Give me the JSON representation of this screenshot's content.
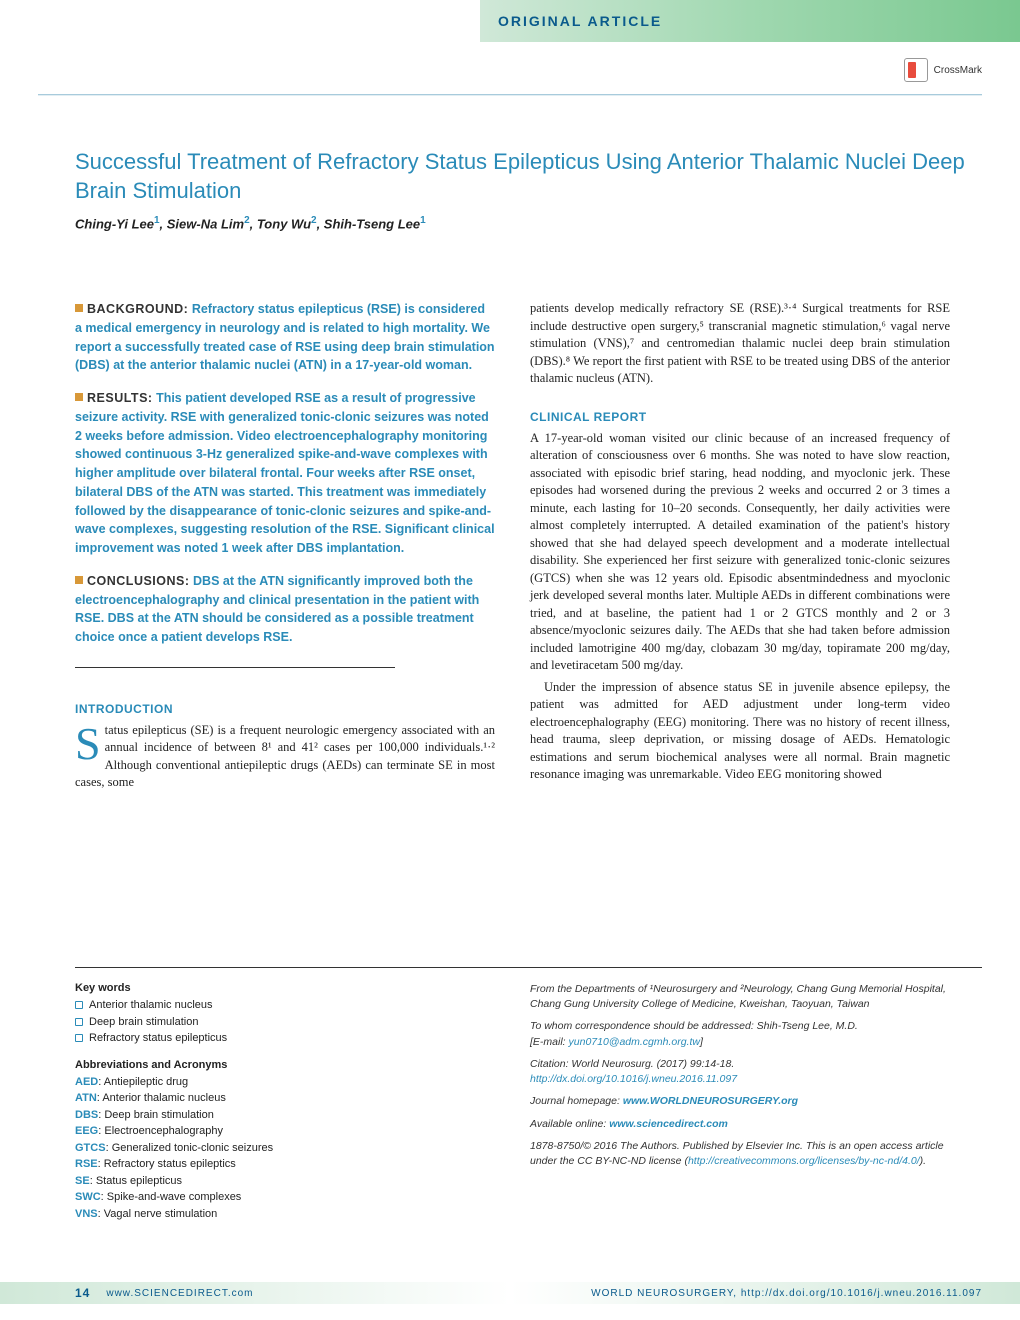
{
  "header": {
    "section_label": "Original Article",
    "crossmark": "CrossMark"
  },
  "title": "Successful Treatment of Refractory Status Epilepticus Using Anterior Thalamic Nuclei Deep Brain Stimulation",
  "authors_html": "Ching-Yi Lee<sup>1</sup>, Siew-Na Lim<sup>2</sup>, Tony Wu<sup>2</sup>, Shih-Tseng Lee<sup>1</sup>",
  "abstract": {
    "background": {
      "label": "BACKGROUND:",
      "text": "Refractory status epilepticus (RSE) is considered a medical emergency in neurology and is related to high mortality. We report a successfully treated case of RSE using deep brain stimulation (DBS) at the anterior thalamic nuclei (ATN) in a 17-year-old woman."
    },
    "results": {
      "label": "RESULTS:",
      "text": "This patient developed RSE as a result of progressive seizure activity. RSE with generalized tonic-clonic seizures was noted 2 weeks before admission. Video electroencephalography monitoring showed continuous 3-Hz generalized spike-and-wave complexes with higher amplitude over bilateral frontal. Four weeks after RSE onset, bilateral DBS of the ATN was started. This treatment was immediately followed by the disappearance of tonic-clonic seizures and spike-and-wave complexes, suggesting resolution of the RSE. Significant clinical improvement was noted 1 week after DBS implantation."
    },
    "conclusions": {
      "label": "CONCLUSIONS:",
      "text": "DBS at the ATN significantly improved both the electroencephalography and clinical presentation in the patient with RSE. DBS at the ATN should be considered as a possible treatment choice once a patient develops RSE."
    }
  },
  "introduction": {
    "heading": "INTRODUCTION",
    "dropcap": "S",
    "text": "tatus epilepticus (SE) is a frequent neurologic emergency associated with an annual incidence of between 8¹ and 41² cases per 100,000 individuals.¹·² Although conventional antiepileptic drugs (AEDs) can terminate SE in most cases, some"
  },
  "right_column": {
    "cont_text": "patients develop medically refractory SE (RSE).³·⁴ Surgical treatments for RSE include destructive open surgery,⁵ transcranial magnetic stimulation,⁶ vagal nerve stimulation (VNS),⁷ and centromedian thalamic nuclei deep brain stimulation (DBS).⁸ We report the first patient with RSE to be treated using DBS of the anterior thalamic nucleus (ATN).",
    "clinical_heading": "CLINICAL REPORT",
    "clinical_p1": "A 17-year-old woman visited our clinic because of an increased frequency of alteration of consciousness over 6 months. She was noted to have slow reaction, associated with episodic brief staring, head nodding, and myoclonic jerk. These episodes had worsened during the previous 2 weeks and occurred 2 or 3 times a minute, each lasting for 10–20 seconds. Consequently, her daily activities were almost completely interrupted. A detailed examination of the patient's history showed that she had delayed speech development and a moderate intellectual disability. She experienced her first seizure with generalized tonic-clonic seizures (GTCS) when she was 12 years old. Episodic absentmindedness and myoclonic jerk developed several months later. Multiple AEDs in different combinations were tried, and at baseline, the patient had 1 or 2 GTCS monthly and 2 or 3 absence/myoclonic seizures daily. The AEDs that she had taken before admission included lamotrigine 400 mg/day, clobazam 30 mg/day, topiramate 200 mg/day, and levetiracetam 500 mg/day.",
    "clinical_p2": "Under the impression of absence status SE in juvenile absence epilepsy, the patient was admitted for AED adjustment under long-term video electroencephalography (EEG) monitoring. There was no history of recent illness, head trauma, sleep deprivation, or missing dosage of AEDs. Hematologic estimations and serum biochemical analyses were all normal. Brain magnetic resonance imaging was unremarkable. Video EEG monitoring showed"
  },
  "keywords": {
    "heading": "Key words",
    "items": [
      "Anterior thalamic nucleus",
      "Deep brain stimulation",
      "Refractory status epilepticus"
    ]
  },
  "abbreviations": {
    "heading": "Abbreviations and Acronyms",
    "items": [
      {
        "k": "AED",
        "v": "Antiepileptic drug"
      },
      {
        "k": "ATN",
        "v": "Anterior thalamic nucleus"
      },
      {
        "k": "DBS",
        "v": "Deep brain stimulation"
      },
      {
        "k": "EEG",
        "v": "Electroencephalography"
      },
      {
        "k": "GTCS",
        "v": "Generalized tonic-clonic seizures"
      },
      {
        "k": "RSE",
        "v": "Refractory status epileptics"
      },
      {
        "k": "SE",
        "v": "Status epilepticus"
      },
      {
        "k": "SWC",
        "v": "Spike-and-wave complexes"
      },
      {
        "k": "VNS",
        "v": "Vagal nerve stimulation"
      }
    ]
  },
  "citation": {
    "affiliation": "From the Departments of ¹Neurosurgery and ²Neurology, Chang Gung Memorial Hospital, Chang Gung University College of Medicine, Kweishan, Taoyuan, Taiwan",
    "correspondence": "To whom correspondence should be addressed: Shih-Tseng Lee, M.D.",
    "email_label": "[E-mail: ",
    "email": "yun0710@adm.cgmh.org.tw",
    "email_close": "]",
    "cite": "Citation: World Neurosurg. (2017) 99:14-18.",
    "doi": "http://dx.doi.org/10.1016/j.wneu.2016.11.097",
    "journal_label": "Journal homepage: ",
    "journal_url": "www.WORLDNEUROSURGERY.org",
    "available_label": "Available online: ",
    "available_url": "www.sciencedirect.com",
    "copyright": "1878-8750/© 2016 The Authors. Published by Elsevier Inc. This is an open access article under the CC BY-NC-ND license (",
    "cc_url": "http://creativecommons.org/licenses/by-nc-nd/4.0/",
    "copyright_close": ")."
  },
  "footer": {
    "page": "14",
    "sd": "www.SCIENCEDIRECT.com",
    "journal": "WORLD NEUROSURGERY, ",
    "doi": "http://dx.doi.org/10.1016/j.wneu.2016.11.097"
  },
  "colors": {
    "blue": "#2a8bb8",
    "orange": "#d89838",
    "header_green_end": "#7ac890"
  }
}
